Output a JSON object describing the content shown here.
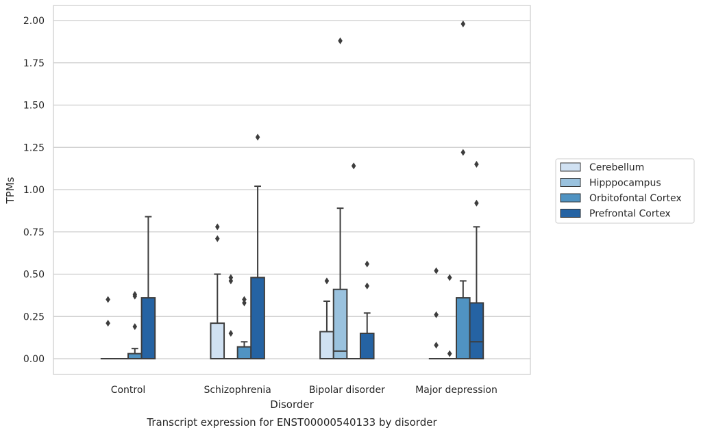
{
  "chart_data": {
    "type": "box",
    "caption": "Transcript expression for ENST00000540133 by disorder",
    "xlabel": "Disorder",
    "ylabel": "TPMs",
    "ylim": [
      -0.1,
      2.08
    ],
    "yticks": [
      "0.00",
      "0.25",
      "0.50",
      "0.75",
      "1.00",
      "1.25",
      "1.50",
      "1.75",
      "2.00"
    ],
    "ytick_values": [
      0,
      0.25,
      0.5,
      0.75,
      1.0,
      1.25,
      1.5,
      1.75,
      2.0
    ],
    "grid": true,
    "legend_position": "right",
    "categories": [
      "Control",
      "Schizophrenia",
      "Bipolar disorder",
      "Major depression"
    ],
    "series": [
      {
        "name": "Cerebellum",
        "color": "#d0e1f2",
        "boxes": [
          {
            "q1": 0,
            "median": 0,
            "q3": 0,
            "whisker_low": 0,
            "whisker_high": 0,
            "outliers": [
              0.35,
              0.21
            ]
          },
          {
            "q1": 0,
            "median": 0,
            "q3": 0.21,
            "whisker_low": 0,
            "whisker_high": 0.5,
            "outliers": [
              0.78,
              0.71
            ]
          },
          {
            "q1": 0,
            "median": 0,
            "q3": 0.16,
            "whisker_low": 0,
            "whisker_high": 0.34,
            "outliers": [
              0.46
            ]
          },
          {
            "q1": 0,
            "median": 0,
            "q3": 0,
            "whisker_low": 0,
            "whisker_high": 0,
            "outliers": [
              0.52,
              0.26,
              0.08
            ]
          }
        ]
      },
      {
        "name": "Hipppocampus",
        "color": "#9ac2de",
        "boxes": [
          {
            "q1": 0,
            "median": 0,
            "q3": 0,
            "whisker_low": 0,
            "whisker_high": 0,
            "outliers": []
          },
          {
            "q1": 0,
            "median": 0,
            "q3": 0,
            "whisker_low": 0,
            "whisker_high": 0,
            "outliers": [
              0.48,
              0.46,
              0.15
            ]
          },
          {
            "q1": 0,
            "median": 0.045,
            "q3": 0.41,
            "whisker_low": 0,
            "whisker_high": 0.89,
            "outliers": [
              1.88
            ]
          },
          {
            "q1": 0,
            "median": 0,
            "q3": 0,
            "whisker_low": 0,
            "whisker_high": 0,
            "outliers": [
              0.48,
              0.03
            ]
          }
        ]
      },
      {
        "name": "Orbitofontal Cortex",
        "color": "#5093c2",
        "boxes": [
          {
            "q1": 0,
            "median": 0,
            "q3": 0.03,
            "whisker_low": 0,
            "whisker_high": 0.06,
            "outliers": [
              0.38,
              0.37,
              0.19
            ]
          },
          {
            "q1": 0,
            "median": 0,
            "q3": 0.07,
            "whisker_low": 0,
            "whisker_high": 0.1,
            "outliers": [
              0.35,
              0.33
            ]
          },
          {
            "q1": 0,
            "median": 0,
            "q3": 0,
            "whisker_low": 0,
            "whisker_high": 0,
            "outliers": [
              1.14
            ]
          },
          {
            "q1": 0,
            "median": 0,
            "q3": 0.36,
            "whisker_low": 0,
            "whisker_high": 0.46,
            "outliers": [
              1.98,
              1.22
            ]
          }
        ]
      },
      {
        "name": "Prefrontal Cortex",
        "color": "#2563a3",
        "boxes": [
          {
            "q1": 0,
            "median": 0,
            "q3": 0.36,
            "whisker_low": 0,
            "whisker_high": 0.84,
            "outliers": []
          },
          {
            "q1": 0,
            "median": 0,
            "q3": 0.48,
            "whisker_low": 0,
            "whisker_high": 1.02,
            "outliers": [
              1.31
            ]
          },
          {
            "q1": 0,
            "median": 0,
            "q3": 0.15,
            "whisker_low": 0,
            "whisker_high": 0.27,
            "outliers": [
              0.56,
              0.43
            ]
          },
          {
            "q1": 0,
            "median": 0.1,
            "q3": 0.33,
            "whisker_low": 0,
            "whisker_high": 0.78,
            "outliers": [
              1.15,
              0.92
            ]
          }
        ]
      }
    ]
  }
}
